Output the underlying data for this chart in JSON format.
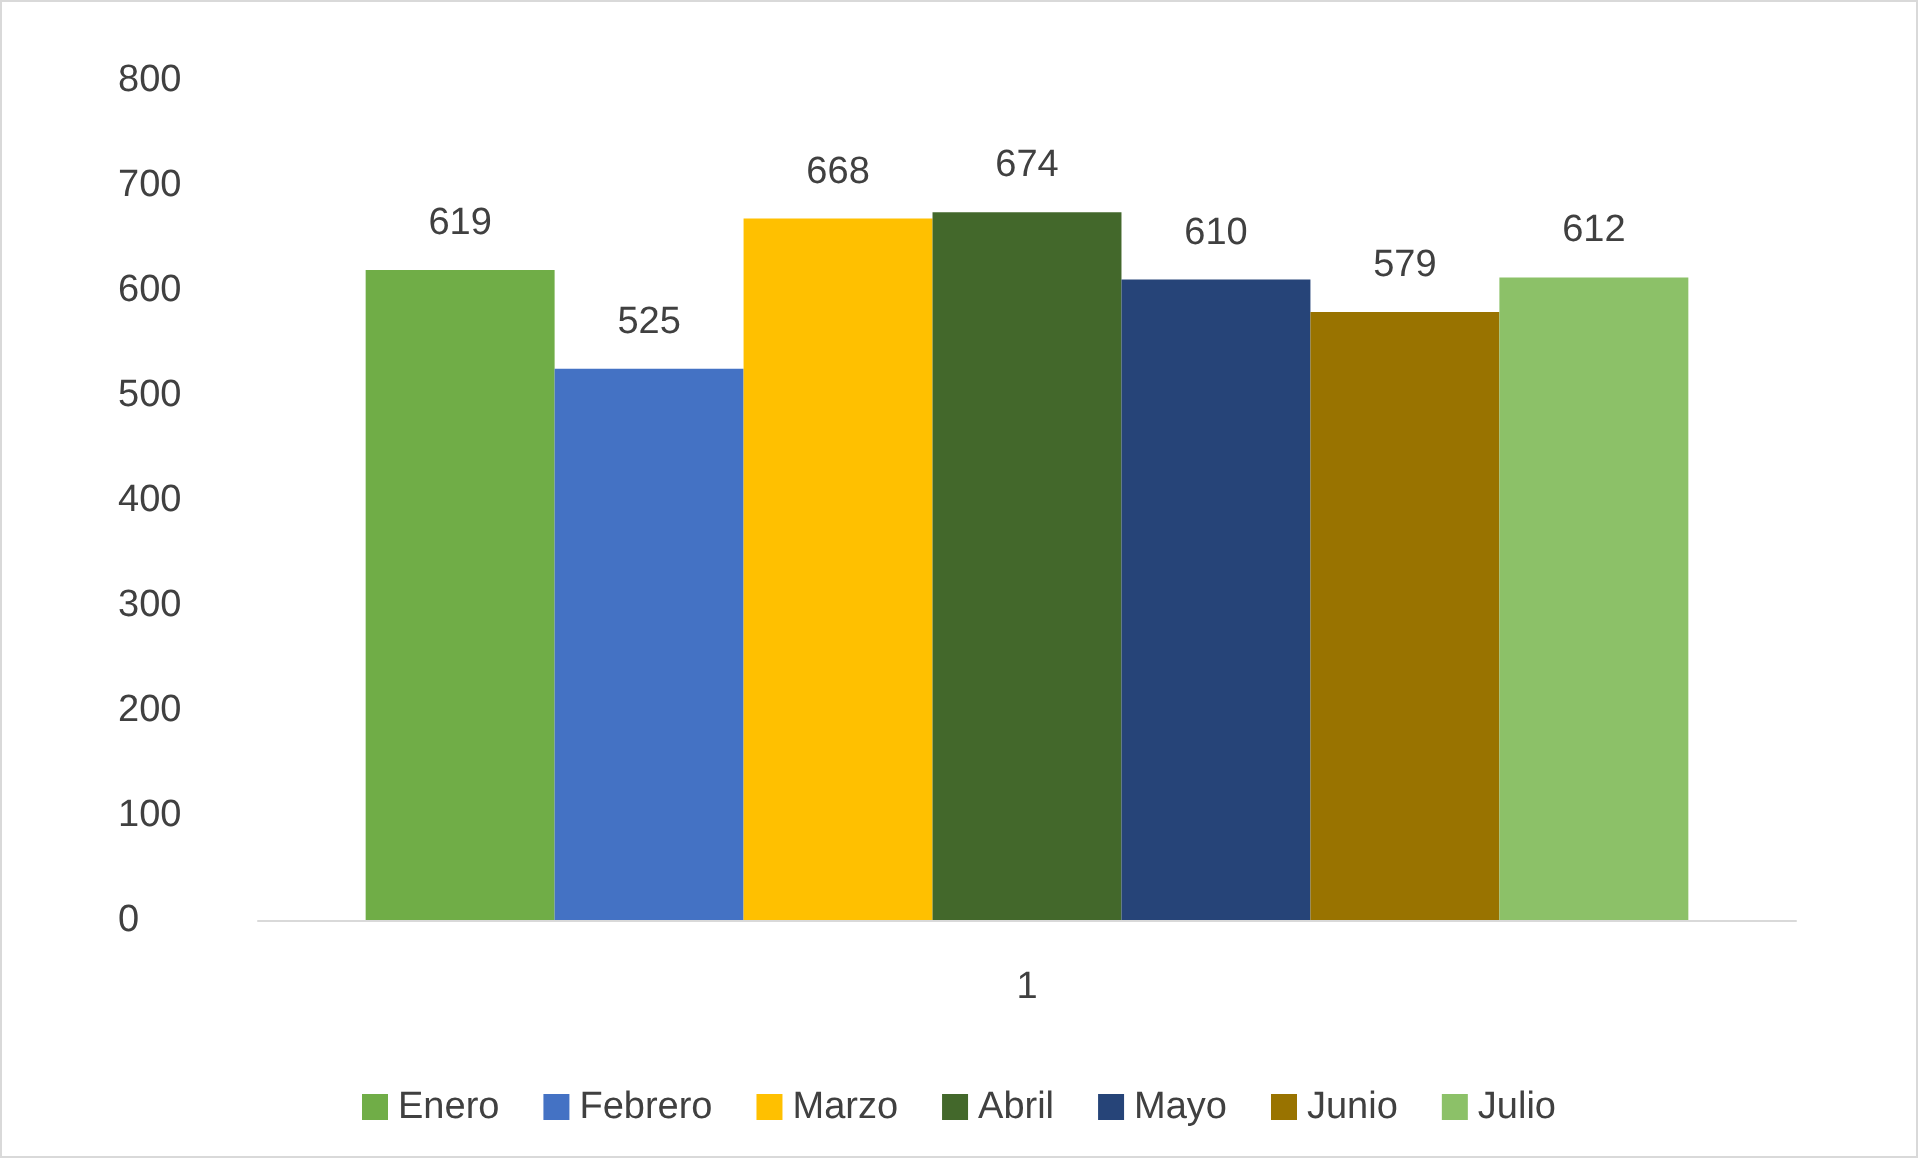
{
  "chart_data": {
    "type": "bar",
    "categories": [
      "1"
    ],
    "series": [
      {
        "name": "Enero",
        "color": "#70ad47",
        "values": [
          619
        ]
      },
      {
        "name": "Febrero",
        "color": "#4472c4",
        "values": [
          525
        ]
      },
      {
        "name": "Marzo",
        "color": "#ffc000",
        "values": [
          668
        ]
      },
      {
        "name": "Abril",
        "color": "#43682b",
        "values": [
          674
        ]
      },
      {
        "name": "Mayo",
        "color": "#264478",
        "values": [
          610
        ]
      },
      {
        "name": "Junio",
        "color": "#997300",
        "values": [
          579
        ]
      },
      {
        "name": "Julio",
        "color": "#8cc168",
        "values": [
          612
        ]
      }
    ],
    "ylim": [
      0,
      800
    ],
    "yticks": [
      0,
      100,
      200,
      300,
      400,
      500,
      600,
      700,
      800
    ],
    "grid": false,
    "legend": "bottom",
    "data_labels": true
  }
}
